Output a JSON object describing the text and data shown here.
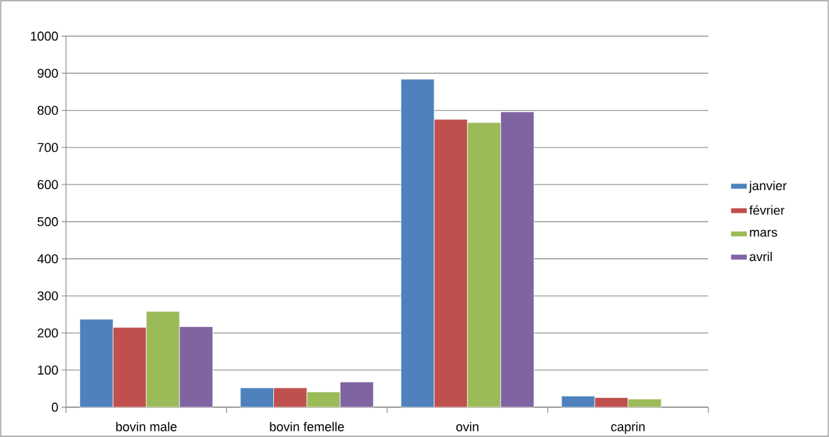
{
  "chart_data": {
    "type": "bar",
    "categories": [
      "bovin male",
      "bovin femelle",
      "ovin",
      "caprin"
    ],
    "series": [
      {
        "name": "janvier",
        "color": "#4f81bd",
        "values": [
          237,
          52,
          884,
          30
        ]
      },
      {
        "name": "février",
        "color": "#c0504d",
        "values": [
          215,
          52,
          776,
          26
        ]
      },
      {
        "name": "mars",
        "color": "#9bbb59",
        "values": [
          258,
          41,
          767,
          22
        ]
      },
      {
        "name": "avril",
        "color": "#8064a2",
        "values": [
          217,
          68,
          796,
          null
        ]
      }
    ],
    "ylim": [
      0,
      1000
    ],
    "yticks": [
      0,
      100,
      200,
      300,
      400,
      500,
      600,
      700,
      800,
      900,
      1000
    ],
    "grid": "y",
    "legend": "right"
  }
}
